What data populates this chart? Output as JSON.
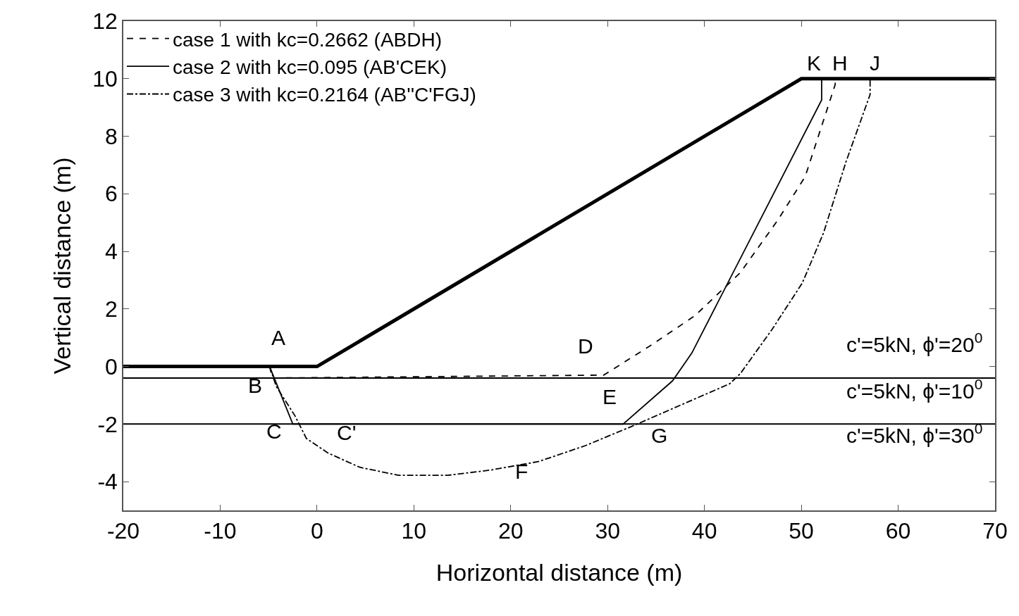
{
  "chart_data": {
    "type": "line",
    "xlabel": "Horizontal distance (m)",
    "ylabel": "Vertical distance (m)",
    "xlim": [
      -20,
      70
    ],
    "xticks": [
      -20,
      -10,
      0,
      10,
      20,
      30,
      40,
      50,
      60,
      70
    ],
    "ylim": [
      -5,
      12
    ],
    "yticks": [
      -4,
      -2,
      0,
      2,
      4,
      6,
      8,
      10,
      12
    ],
    "legend": "top left",
    "marker": "none",
    "series": [
      {
        "color": "#000000",
        "line_style": "solid",
        "x": [
          -20,
          0,
          50,
          70
        ],
        "values": [
          0,
          0,
          10,
          10
        ]
      },
      {
        "name": "case 1 with kc=0.2662 (ABDH)",
        "color": "#000000",
        "line_style": "dashed",
        "x": [
          -4.9,
          -4.6,
          29.6,
          34.3,
          39.0,
          43.7,
          47.6,
          50.4,
          53.5,
          53.5
        ],
        "values": [
          0,
          -0.4,
          -0.3,
          0.7,
          1.76,
          3.26,
          5.1,
          6.6,
          9.8,
          10
        ]
      },
      {
        "name": "case 2 with kc=0.095 (AB'CEK)",
        "color": "#000000",
        "line_style": "solid",
        "x": [
          -4.9,
          -2.5,
          31.6,
          36.7,
          38.7,
          52.1,
          52.1
        ],
        "values": [
          0,
          -2.0,
          -2.0,
          -0.5,
          0.47,
          9.26,
          10
        ]
      },
      {
        "name": "case 3 with kc=0.2164 (AB''C'FGJ)",
        "color": "#000000",
        "line_style": "dashdot",
        "x": [
          -4.9,
          -4.2,
          -2.3,
          -1.1,
          1.1,
          4.4,
          8.4,
          13.5,
          17.9,
          22.9,
          27.7,
          32.5,
          42.6,
          43.7,
          47.0,
          50.1,
          52.3,
          54.6,
          57.1,
          57.1
        ],
        "values": [
          0,
          -0.7,
          -1.7,
          -2.5,
          -3.0,
          -3.5,
          -3.78,
          -3.78,
          -3.6,
          -3.3,
          -2.75,
          -2.08,
          -0.6,
          -0.25,
          1.3,
          2.9,
          4.65,
          7.1,
          9.45,
          10
        ]
      }
    ],
    "ref_lines": [
      {
        "axis": "y",
        "value": -0.4,
        "color": "#000000"
      },
      {
        "axis": "y",
        "value": -2,
        "color": "#000000"
      }
    ],
    "annotations": [
      "A",
      "B",
      "C",
      "C'",
      "D",
      "E",
      "F",
      "G",
      "K",
      "H",
      "J",
      "c'=5kN, ϕ'=20$^{0}$",
      "c'=5kN, ϕ'=10$^{0}$",
      "c'=5kN, ϕ'=30$^{0}$"
    ]
  }
}
